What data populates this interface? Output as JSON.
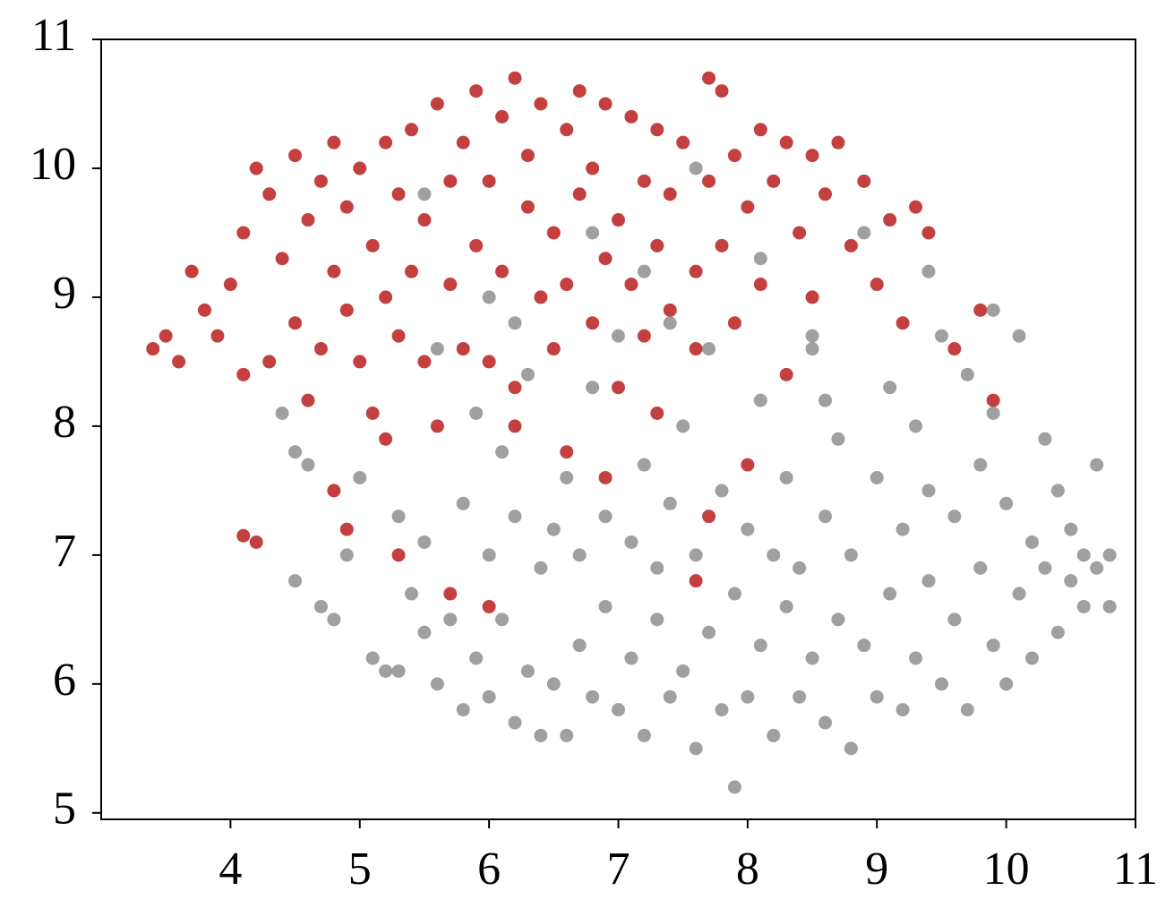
{
  "chart_data": {
    "type": "scatter",
    "xlim": [
      3,
      11
    ],
    "ylim": [
      4.95,
      11
    ],
    "xticks": [
      4,
      5,
      6,
      7,
      8,
      9,
      10,
      11
    ],
    "yticks": [
      5,
      6,
      7,
      8,
      9,
      10,
      11
    ],
    "series": [
      {
        "color": "#b00000",
        "x": [
          3.4,
          3.5,
          3.6,
          3.7,
          3.8,
          3.9,
          4.0,
          4.1,
          4.2,
          4.1,
          4.3,
          4.3,
          4.4,
          4.5,
          4.5,
          4.6,
          4.6,
          4.7,
          4.7,
          4.8,
          4.8,
          4.9,
          4.9,
          5.0,
          5.0,
          5.1,
          5.1,
          5.2,
          5.2,
          5.3,
          5.3,
          5.4,
          5.4,
          5.5,
          5.5,
          5.6,
          5.6,
          5.7,
          5.7,
          5.8,
          5.8,
          5.9,
          5.9,
          6.0,
          6.0,
          6.1,
          6.1,
          6.2,
          6.2,
          6.3,
          6.3,
          6.4,
          6.4,
          6.5,
          6.5,
          6.6,
          6.6,
          6.7,
          6.7,
          6.8,
          6.8,
          6.9,
          6.9,
          7.0,
          7.0,
          7.1,
          7.1,
          7.2,
          7.2,
          7.3,
          7.3,
          7.4,
          7.4,
          7.5,
          7.6,
          7.6,
          7.7,
          7.7,
          7.8,
          7.8,
          7.9,
          7.9,
          8.0,
          8.1,
          8.1,
          8.2,
          8.3,
          8.3,
          8.4,
          8.5,
          8.5,
          8.6,
          8.7,
          8.8,
          8.9,
          9.0,
          9.1,
          9.2,
          9.3,
          9.4,
          9.6,
          9.8,
          9.9,
          4.1,
          4.2,
          4.9,
          4.8,
          5.3,
          6.0,
          5.7,
          6.9,
          7.7,
          8.0,
          7.6,
          6.6,
          5.2,
          6.2,
          7.3
        ],
        "values": [
          8.6,
          8.7,
          8.5,
          9.2,
          8.9,
          8.7,
          9.1,
          9.5,
          10.0,
          8.4,
          8.5,
          9.8,
          9.3,
          10.1,
          8.8,
          9.6,
          8.2,
          9.9,
          8.6,
          9.2,
          10.2,
          8.9,
          9.7,
          10.0,
          8.5,
          9.4,
          8.1,
          10.2,
          9.0,
          8.7,
          9.8,
          10.3,
          9.2,
          8.5,
          9.6,
          10.5,
          8.0,
          9.9,
          9.1,
          10.2,
          8.6,
          10.6,
          9.4,
          9.9,
          8.5,
          10.4,
          9.2,
          10.7,
          8.3,
          9.7,
          10.1,
          9.0,
          10.5,
          9.5,
          8.6,
          10.3,
          9.1,
          10.6,
          9.8,
          8.8,
          10.0,
          9.3,
          10.5,
          9.6,
          8.3,
          10.4,
          9.1,
          9.9,
          8.7,
          10.3,
          9.4,
          8.9,
          9.8,
          10.2,
          9.2,
          8.6,
          10.7,
          9.9,
          10.6,
          9.4,
          10.1,
          8.8,
          9.7,
          10.3,
          9.1,
          9.9,
          10.2,
          8.4,
          9.5,
          10.1,
          9.0,
          9.8,
          10.2,
          9.4,
          9.9,
          9.1,
          9.6,
          8.8,
          9.7,
          9.5,
          8.6,
          8.9,
          8.2,
          7.15,
          7.1,
          7.2,
          7.5,
          7.0,
          6.6,
          6.7,
          7.6,
          7.3,
          7.7,
          6.8,
          7.8,
          7.9,
          8.0,
          8.1
        ]
      },
      {
        "color": "#808080",
        "x": [
          4.4,
          4.5,
          4.6,
          4.5,
          4.7,
          4.8,
          4.9,
          5.0,
          5.1,
          5.2,
          5.3,
          5.3,
          5.4,
          5.5,
          5.5,
          5.6,
          5.6,
          5.7,
          5.8,
          5.8,
          5.9,
          5.9,
          6.0,
          6.0,
          6.1,
          6.1,
          6.2,
          6.2,
          6.3,
          6.3,
          6.4,
          6.4,
          6.5,
          6.5,
          6.6,
          6.6,
          6.7,
          6.7,
          6.8,
          6.8,
          6.9,
          6.9,
          7.0,
          7.0,
          7.1,
          7.1,
          7.2,
          7.2,
          7.3,
          7.3,
          7.4,
          7.4,
          7.5,
          7.5,
          7.6,
          7.6,
          7.7,
          7.7,
          7.8,
          7.8,
          7.9,
          7.9,
          8.0,
          8.0,
          8.1,
          8.1,
          8.2,
          8.2,
          8.3,
          8.3,
          8.4,
          8.4,
          8.5,
          8.5,
          8.6,
          8.6,
          8.7,
          8.7,
          8.8,
          8.8,
          8.9,
          8.9,
          9.0,
          9.0,
          9.1,
          9.1,
          9.2,
          9.2,
          9.3,
          9.3,
          9.4,
          9.4,
          9.5,
          9.5,
          9.6,
          9.6,
          9.7,
          9.7,
          9.8,
          9.8,
          9.9,
          9.9,
          10.0,
          10.0,
          10.1,
          10.1,
          10.2,
          10.2,
          10.3,
          10.3,
          10.4,
          10.4,
          10.5,
          10.5,
          10.6,
          10.6,
          10.7,
          10.7,
          10.8,
          10.8,
          5.5,
          6.0,
          6.8,
          7.4,
          7.6,
          8.1,
          8.5,
          9.4,
          6.2,
          7.2,
          8.6,
          9.9
        ],
        "values": [
          8.1,
          7.8,
          7.7,
          6.8,
          6.6,
          6.5,
          7.0,
          7.6,
          6.2,
          6.1,
          6.1,
          7.3,
          6.7,
          6.4,
          7.1,
          6.0,
          8.6,
          6.5,
          5.8,
          7.4,
          6.2,
          8.1,
          5.9,
          7.0,
          6.5,
          7.8,
          5.7,
          7.3,
          6.1,
          8.4,
          5.6,
          6.9,
          7.2,
          6.0,
          5.6,
          7.6,
          6.3,
          7.0,
          5.9,
          8.3,
          6.6,
          7.3,
          5.8,
          8.7,
          6.2,
          7.1,
          5.6,
          7.7,
          6.5,
          6.9,
          5.9,
          7.4,
          6.1,
          8.0,
          5.5,
          7.0,
          6.4,
          8.6,
          5.8,
          7.5,
          5.2,
          6.7,
          5.9,
          7.2,
          6.3,
          8.2,
          5.6,
          7.0,
          6.6,
          7.6,
          5.9,
          6.9,
          6.2,
          8.6,
          7.3,
          5.7,
          6.5,
          7.9,
          5.5,
          7.0,
          6.3,
          9.5,
          5.9,
          7.6,
          6.7,
          8.3,
          5.8,
          7.2,
          6.2,
          8.0,
          6.8,
          7.5,
          6.0,
          8.7,
          6.5,
          7.3,
          5.8,
          8.4,
          6.9,
          7.7,
          6.3,
          8.1,
          6.0,
          7.4,
          6.7,
          8.7,
          6.2,
          7.1,
          6.9,
          7.9,
          6.4,
          7.5,
          6.8,
          7.2,
          7.0,
          6.6,
          7.7,
          6.9,
          7.0,
          6.6,
          9.8,
          9.0,
          9.5,
          8.8,
          10.0,
          9.3,
          8.7,
          9.2,
          8.8,
          9.2,
          8.2,
          8.9
        ]
      }
    ]
  }
}
